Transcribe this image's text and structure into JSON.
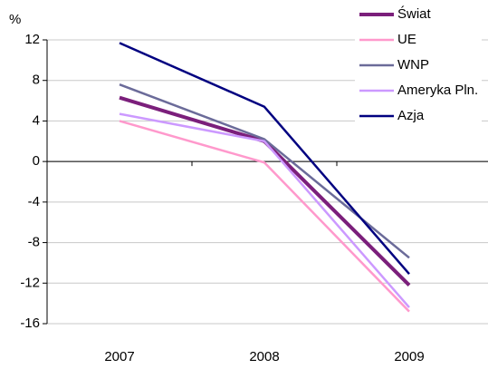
{
  "chart_data": {
    "type": "line",
    "y_label": "%",
    "categories": [
      "2007",
      "2008",
      "2009"
    ],
    "series": [
      {
        "name": "Świat",
        "color": "#7b1f7b",
        "values": [
          6.3,
          2.0,
          -12.2
        ]
      },
      {
        "name": "UE",
        "color": "#ff99cc",
        "values": [
          4.0,
          -0.1,
          -14.8
        ]
      },
      {
        "name": "WNP",
        "color": "#6b6b99",
        "values": [
          7.6,
          2.2,
          -9.5
        ]
      },
      {
        "name": "Ameryka Pln.",
        "color": "#cc99ff",
        "values": [
          4.7,
          2.0,
          -14.4
        ]
      },
      {
        "name": "Azja",
        "color": "#000080",
        "values": [
          11.7,
          5.4,
          -11.1
        ]
      }
    ],
    "ylim": [
      -16,
      12
    ],
    "yticks": [
      12,
      8,
      4,
      0,
      -4,
      -8,
      -12,
      -16
    ],
    "grid": true
  }
}
